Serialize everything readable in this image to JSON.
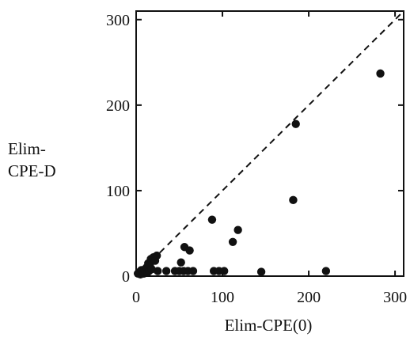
{
  "chart_data": {
    "type": "scatter",
    "xlabel": "Elim-CPE(0)",
    "ylabel_lines": [
      "Elim-",
      "CPE-D"
    ],
    "xlim": [
      0,
      310
    ],
    "ylim": [
      0,
      310
    ],
    "x_ticks": [
      0,
      100,
      200,
      300
    ],
    "y_ticks": [
      0,
      100,
      200,
      300
    ],
    "grid": false,
    "reference_line": {
      "style": "dashed",
      "from": [
        0,
        0
      ],
      "to": [
        310,
        310
      ]
    },
    "series": [
      {
        "color": "#111111",
        "points": [
          [
            2,
            3
          ],
          [
            4,
            5
          ],
          [
            5,
            2
          ],
          [
            6,
            7
          ],
          [
            7,
            4
          ],
          [
            8,
            6
          ],
          [
            9,
            3
          ],
          [
            10,
            8
          ],
          [
            11,
            5
          ],
          [
            12,
            10
          ],
          [
            13,
            4
          ],
          [
            14,
            15
          ],
          [
            15,
            6
          ],
          [
            16,
            12
          ],
          [
            17,
            20
          ],
          [
            18,
            8
          ],
          [
            20,
            22
          ],
          [
            22,
            18
          ],
          [
            24,
            24
          ],
          [
            25,
            6
          ],
          [
            35,
            6
          ],
          [
            45,
            6
          ],
          [
            50,
            6
          ],
          [
            55,
            6
          ],
          [
            60,
            6
          ],
          [
            66,
            6
          ],
          [
            52,
            16
          ],
          [
            56,
            34
          ],
          [
            62,
            30
          ],
          [
            88,
            66
          ],
          [
            90,
            6
          ],
          [
            96,
            6
          ],
          [
            102,
            6
          ],
          [
            112,
            40
          ],
          [
            118,
            54
          ],
          [
            145,
            5
          ],
          [
            182,
            89
          ],
          [
            185,
            178
          ],
          [
            220,
            6
          ],
          [
            283,
            237
          ]
        ]
      }
    ]
  }
}
